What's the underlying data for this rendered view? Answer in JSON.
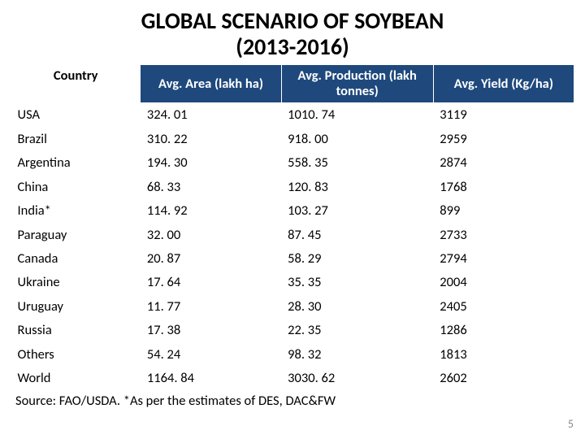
{
  "title_line1": "GLOBAL SCENARIO OF SOYBEAN",
  "title_line2": "(2013-2016)",
  "table": {
    "type": "table",
    "header_bg": "#1f497d",
    "header_color": "#ffffff",
    "columns": [
      "Country",
      "Avg. Area (lakh ha)",
      "Avg. Production (lakh tonnes)",
      "Avg. Yield  (Kg/ha)"
    ],
    "rows": [
      {
        "country": "USA",
        "area": "324. 01",
        "production": "1010. 74",
        "yield": "3119"
      },
      {
        "country": "Brazil",
        "area": "310. 22",
        "production": "918. 00",
        "yield": "2959"
      },
      {
        "country": "Argentina",
        "area": "194. 30",
        "production": "558. 35",
        "yield": "2874"
      },
      {
        "country": "China",
        "area": "68. 33",
        "production": "120. 83",
        "yield": "1768"
      },
      {
        "country": "India*",
        "area": "114. 92",
        "production": "103. 27",
        "yield": "899"
      },
      {
        "country": "Paraguay",
        "area": "32. 00",
        "production": "87. 45",
        "yield": "2733"
      },
      {
        "country": "Canada",
        "area": "20. 87",
        "production": "58. 29",
        "yield": "2794"
      },
      {
        "country": "Ukraine",
        "area": "17. 64",
        "production": "35. 35",
        "yield": "2004"
      },
      {
        "country": "Uruguay",
        "area": "11. 77",
        "production": "28. 30",
        "yield": "2405"
      },
      {
        "country": "Russia",
        "area": "17. 38",
        "production": "22. 35",
        "yield": "1286"
      },
      {
        "country": "Others",
        "area": "54. 24",
        "production": "98. 32",
        "yield": "1813"
      },
      {
        "country": "World",
        "area": "1164. 84",
        "production": "3030. 62",
        "yield": "2602"
      }
    ]
  },
  "footer": "Source: FAO/USDA. *As per the estimates of DES, DAC&FW",
  "page_number": "5"
}
